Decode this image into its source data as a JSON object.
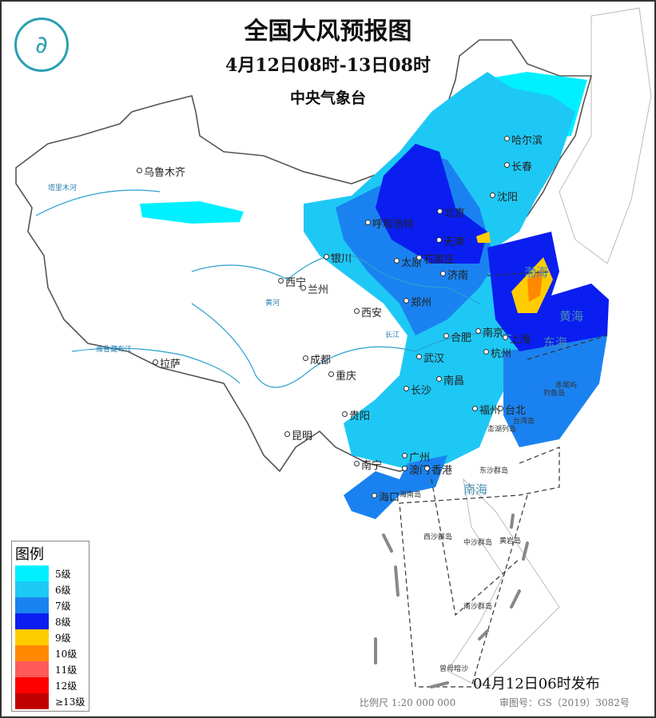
{
  "header": {
    "title": "全国大风预报图",
    "period": "4月12日08时-13日08时",
    "issuer": "中央气象台",
    "logo_icon": "cma-logo-icon"
  },
  "legend": {
    "title": "图例",
    "items": [
      {
        "label": "5级",
        "color": "#00f0ff"
      },
      {
        "label": "6级",
        "color": "#1ec8f5"
      },
      {
        "label": "7级",
        "color": "#1a82f0"
      },
      {
        "label": "8级",
        "color": "#0a1ef0"
      },
      {
        "label": "9级",
        "color": "#ffcc00"
      },
      {
        "label": "10级",
        "color": "#ff8800"
      },
      {
        "label": "11级",
        "color": "#ff5a5a"
      },
      {
        "label": "12级",
        "color": "#ff0000"
      },
      {
        "label": "≥13级",
        "color": "#c00000"
      }
    ]
  },
  "cities": [
    "乌鲁木齐",
    "哈尔滨",
    "长春",
    "沈阳",
    "北京",
    "天津",
    "呼和浩特",
    "银川",
    "太原",
    "石家庄",
    "济南",
    "西宁",
    "兰州",
    "西安",
    "郑州",
    "合肥",
    "南京",
    "上海",
    "杭州",
    "武汉",
    "成都",
    "重庆",
    "拉萨",
    "长沙",
    "南昌",
    "贵阳",
    "昆明",
    "福州",
    "台北",
    "南宁",
    "广州",
    "澳门",
    "香港",
    "海口"
  ],
  "seas": [
    "渤海",
    "黄海",
    "东海",
    "南海"
  ],
  "islands": [
    "赤尾屿",
    "钓鱼岛",
    "台湾岛",
    "澎湖列岛",
    "东沙群岛",
    "西沙群岛",
    "中沙群岛",
    "黄岩岛",
    "南沙群岛",
    "曾母暗沙",
    "海南岛"
  ],
  "rivers": [
    "塔里木河",
    "黄河",
    "长江",
    "雅鲁藏布江"
  ],
  "footer": {
    "issued": "04月12日06时发布",
    "scale": "比例尺 1:20 000 000",
    "approval": "审图号：GS（2019）3082号"
  }
}
